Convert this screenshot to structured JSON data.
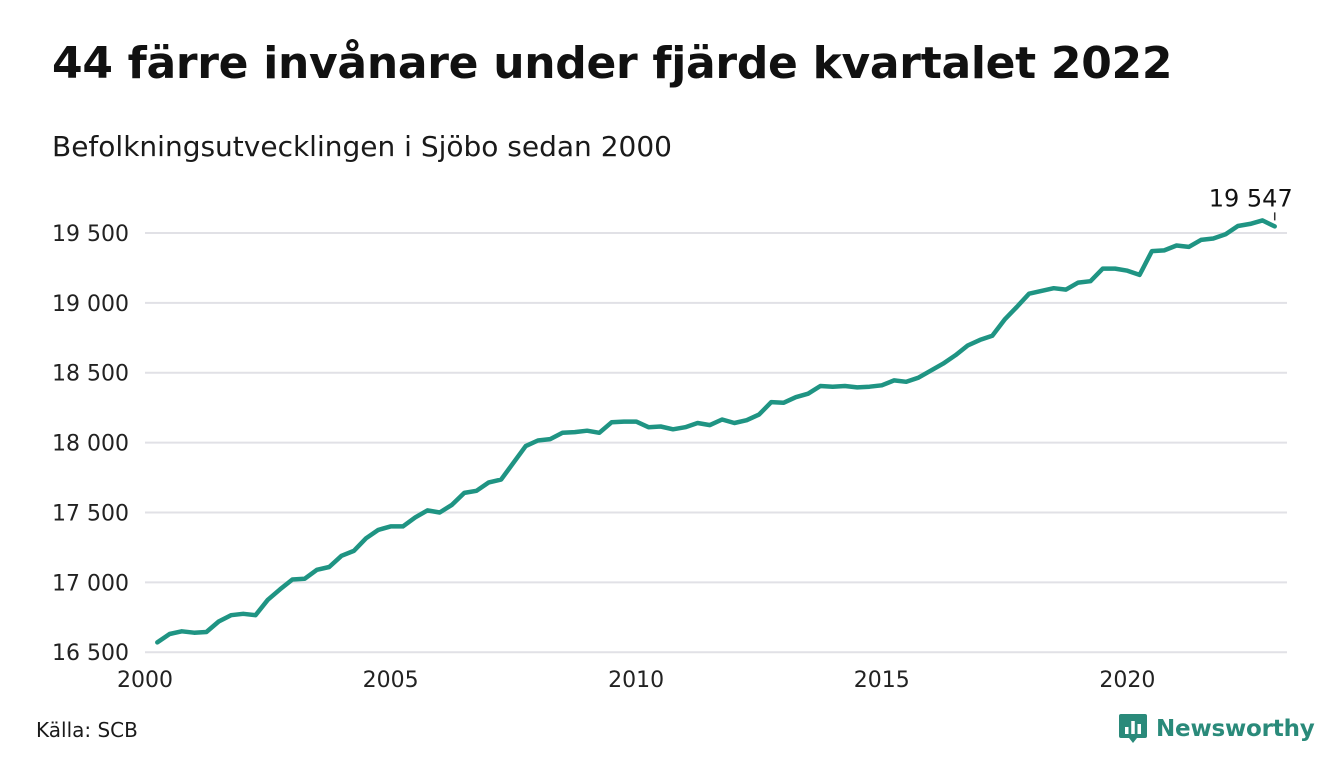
{
  "title": "44 färre invånare under fjärde kvartalet 2022",
  "subtitle": "Befolkningsutvecklingen i Sjöbo sedan 2000",
  "source": "Källa: SCB",
  "brand": {
    "name": "Newsworthy",
    "icon": "newsworthy-logo-icon",
    "color": "#2a8a7a"
  },
  "chart_data": {
    "type": "line",
    "title": "44 färre invånare under fjärde kvartalet 2022",
    "subtitle": "Befolkningsutvecklingen i Sjöbo sedan 2000",
    "xlabel": "",
    "ylabel": "",
    "xlim": [
      2000,
      2023.25
    ],
    "ylim": [
      16430,
      19700
    ],
    "x_ticks": [
      2000,
      2005,
      2010,
      2015,
      2020
    ],
    "x_tick_labels": [
      "2000",
      "2005",
      "2010",
      "2015",
      "2020"
    ],
    "y_ticks": [
      16500,
      17000,
      17500,
      18000,
      18500,
      19000,
      19500
    ],
    "y_tick_labels": [
      "16 500",
      "17 000",
      "17 500",
      "18 000",
      "18 500",
      "19 000",
      "19 500"
    ],
    "grid": "horizontal",
    "line_color": "#1f9483",
    "series": [
      {
        "x": [
          2000.25,
          2000.5,
          2000.75,
          2001,
          2001.25,
          2001.5,
          2001.75,
          2002,
          2002.25,
          2002.5,
          2002.75,
          2003,
          2003.25,
          2003.5,
          2003.75,
          2004,
          2004.25,
          2004.5,
          2004.75,
          2005,
          2005.25,
          2005.5,
          2005.75,
          2006,
          2006.25,
          2006.5,
          2006.75,
          2007,
          2007.25,
          2007.5,
          2007.75,
          2008,
          2008.25,
          2008.5,
          2008.75,
          2009,
          2009.25,
          2009.5,
          2009.75,
          2010,
          2010.25,
          2010.5,
          2010.75,
          2011,
          2011.25,
          2011.5,
          2011.75,
          2012,
          2012.25,
          2012.5,
          2012.75,
          2013,
          2013.25,
          2013.5,
          2013.75,
          2014,
          2014.25,
          2014.5,
          2014.75,
          2015,
          2015.25,
          2015.5,
          2015.75,
          2016,
          2016.25,
          2016.5,
          2016.75,
          2017,
          2017.25,
          2017.5,
          2017.75,
          2018,
          2018.25,
          2018.5,
          2018.75,
          2019,
          2019.25,
          2019.5,
          2019.75,
          2020,
          2020.25,
          2020.5,
          2020.75,
          2021,
          2021.25,
          2021.5,
          2021.75,
          2022,
          2022.25,
          2022.5,
          2022.75,
          2023
        ],
        "values": [
          16570,
          16630,
          16650,
          16640,
          16645,
          16720,
          16765,
          16775,
          16765,
          16875,
          16950,
          17020,
          17025,
          17090,
          17110,
          17190,
          17225,
          17315,
          17375,
          17400,
          17400,
          17465,
          17515,
          17500,
          17555,
          17640,
          17655,
          17715,
          17735,
          17855,
          17975,
          18015,
          18025,
          18070,
          18075,
          18085,
          18070,
          18145,
          18150,
          18150,
          18110,
          18115,
          18095,
          18110,
          18140,
          18125,
          18165,
          18140,
          18160,
          18200,
          18290,
          18285,
          18325,
          18350,
          18405,
          18400,
          18405,
          18395,
          18400,
          18410,
          18445,
          18435,
          18465,
          18515,
          18565,
          18625,
          18695,
          18735,
          18765,
          18880,
          18970,
          19065,
          19085,
          19105,
          19095,
          19145,
          19155,
          19245,
          19245,
          19230,
          19200,
          19370,
          19375,
          19410,
          19400,
          19450,
          19460,
          19490,
          19550,
          19565,
          19590,
          19547
        ]
      }
    ],
    "annotations": [
      {
        "text": "19 547",
        "x": 2023,
        "y": 19547
      }
    ]
  }
}
